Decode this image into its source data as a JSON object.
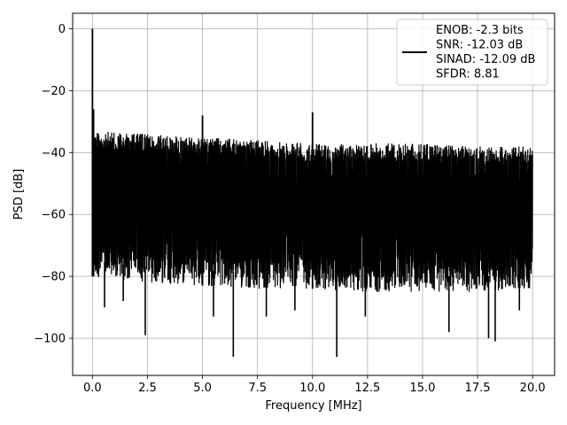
{
  "chart_data": {
    "type": "line",
    "title": "",
    "xlabel": "Frequency [MHz]",
    "ylabel": "PSD [dB]",
    "xlim": [
      -0.9,
      21.0
    ],
    "ylim": [
      -112,
      5
    ],
    "xticks": [
      0.0,
      2.5,
      5.0,
      7.5,
      10.0,
      12.5,
      15.0,
      17.5,
      20.0
    ],
    "xtick_labels": [
      "0.0",
      "2.5",
      "5.0",
      "7.5",
      "10.0",
      "12.5",
      "15.0",
      "17.5",
      "20.0"
    ],
    "yticks": [
      0,
      -20,
      -40,
      -60,
      -80,
      -100
    ],
    "ytick_labels": [
      "0",
      "−20",
      "−40",
      "−60",
      "−80",
      "−100"
    ],
    "grid": true,
    "legend_position": "top-right",
    "series": [
      {
        "name": "ENOB: -2.3 bits",
        "color": "#000000",
        "noise_envelope": {
          "x": [
            0.0,
            2.5,
            5.0,
            7.5,
            10.0,
            12.5,
            15.0,
            17.5,
            20.0
          ],
          "upper": [
            -33,
            -34,
            -35,
            -36,
            -37,
            -37,
            -37,
            -38,
            -38
          ],
          "lower": [
            -80,
            -82,
            -83,
            -84,
            -84,
            -85,
            -85,
            -85,
            -84
          ]
        },
        "spikes": [
          {
            "x": 0.0,
            "y": 0
          },
          {
            "x": 0.05,
            "y": -26
          },
          {
            "x": 5.0,
            "y": -28
          },
          {
            "x": 10.0,
            "y": -27
          }
        ],
        "dips": [
          {
            "x": 0.55,
            "y": -90
          },
          {
            "x": 1.4,
            "y": -88
          },
          {
            "x": 2.4,
            "y": -99
          },
          {
            "x": 5.5,
            "y": -93
          },
          {
            "x": 6.4,
            "y": -106
          },
          {
            "x": 7.9,
            "y": -93
          },
          {
            "x": 9.2,
            "y": -91
          },
          {
            "x": 11.1,
            "y": -106
          },
          {
            "x": 12.4,
            "y": -93
          },
          {
            "x": 16.2,
            "y": -98
          },
          {
            "x": 18.0,
            "y": -100
          },
          {
            "x": 18.3,
            "y": -101
          },
          {
            "x": 19.4,
            "y": -91
          }
        ]
      }
    ],
    "legend_lines": [
      "ENOB: -2.3 bits",
      "SNR: -12.03 dB",
      "SINAD: -12.09 dB",
      "SFDR: 8.81"
    ]
  }
}
